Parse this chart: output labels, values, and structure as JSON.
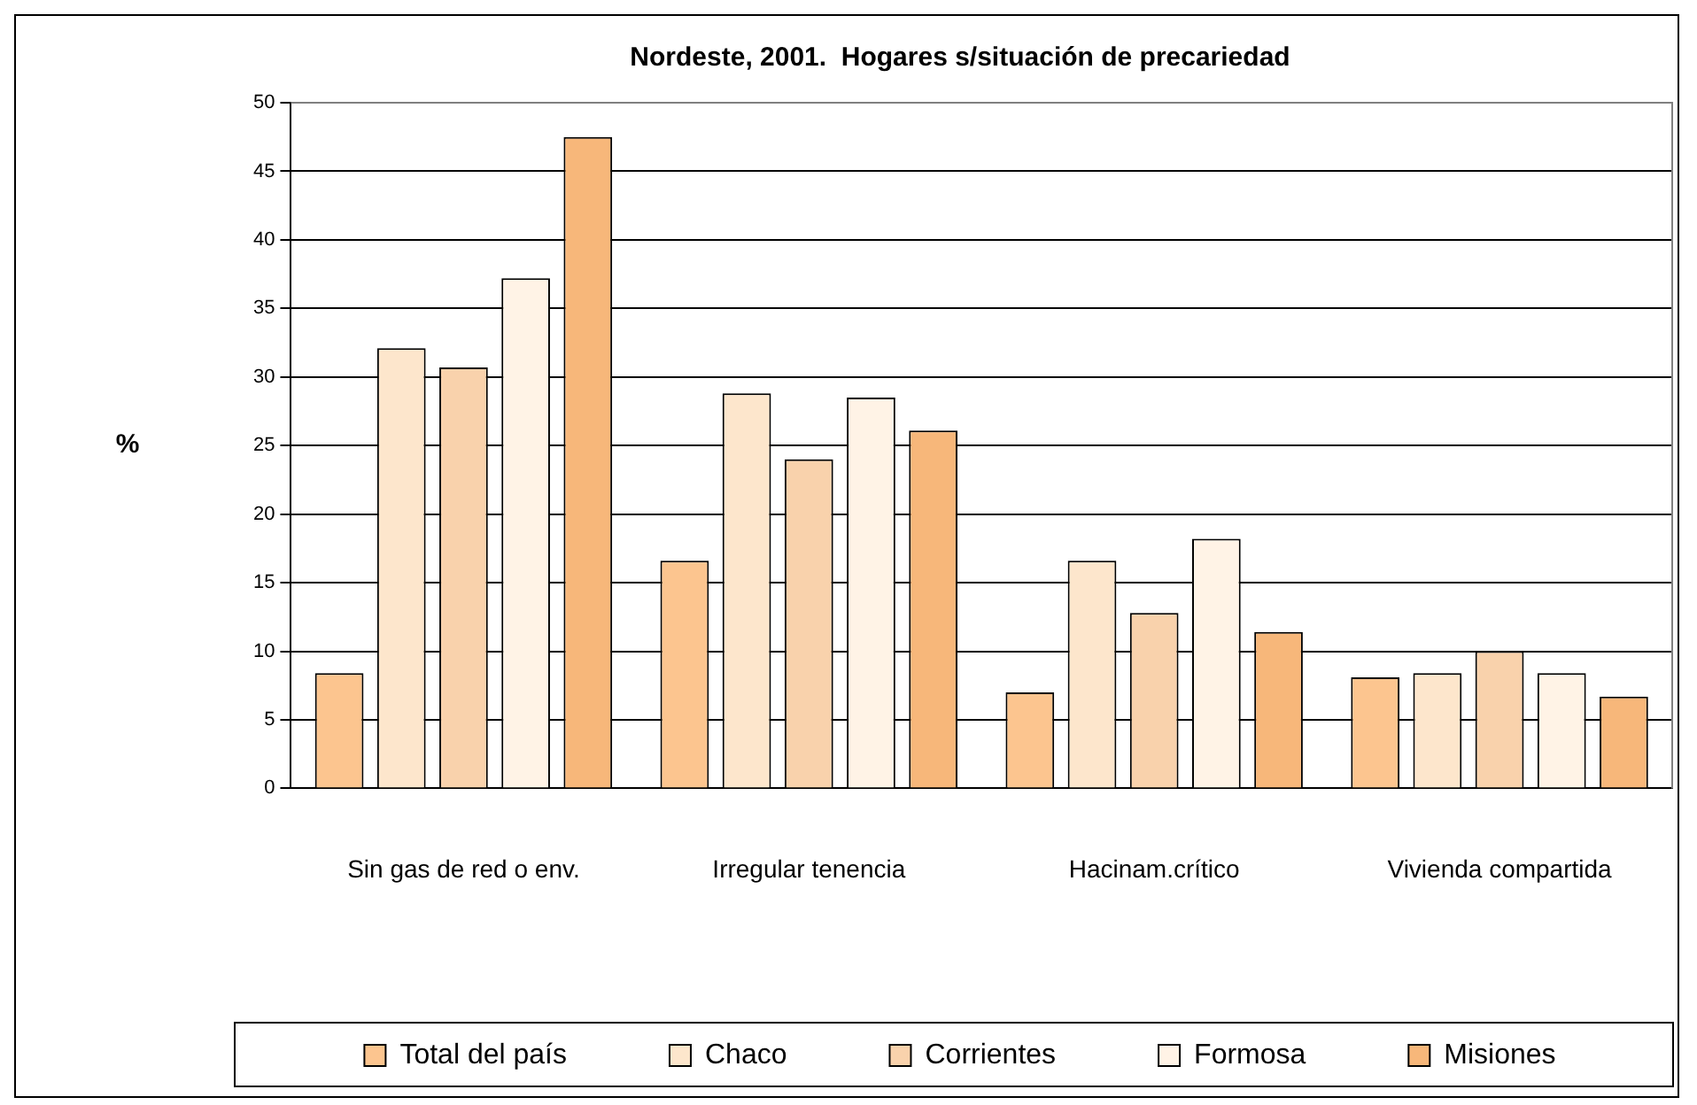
{
  "chart_data": {
    "type": "bar",
    "title": "Nordeste, 2001.  Hogares s/situación de precariedad",
    "ylabel": "%",
    "categories": [
      "Sin gas de red o env.",
      "Irregular tenencia",
      "Hacinam.crítico",
      "Vivienda compartida"
    ],
    "series": [
      {
        "name": "Total del país",
        "color": "#fcc58f",
        "values": [
          8.4,
          16.6,
          7.0,
          8.1
        ]
      },
      {
        "name": "Chaco",
        "color": "#fde6cc",
        "values": [
          32.1,
          28.8,
          16.6,
          8.4
        ]
      },
      {
        "name": "Corrientes",
        "color": "#f9d2ac",
        "values": [
          30.7,
          24.0,
          12.8,
          10.0
        ]
      },
      {
        "name": "Formosa",
        "color": "#fff3e6",
        "values": [
          37.2,
          28.5,
          18.2,
          8.4
        ]
      },
      {
        "name": "Misiones",
        "color": "#f7b77a",
        "values": [
          47.5,
          26.1,
          11.4,
          6.7
        ]
      }
    ],
    "ylim": [
      0,
      50
    ],
    "yticks": [
      0,
      5,
      10,
      15,
      20,
      25,
      30,
      35,
      40,
      45,
      50
    ],
    "grid": "y",
    "legend": "bottom"
  }
}
